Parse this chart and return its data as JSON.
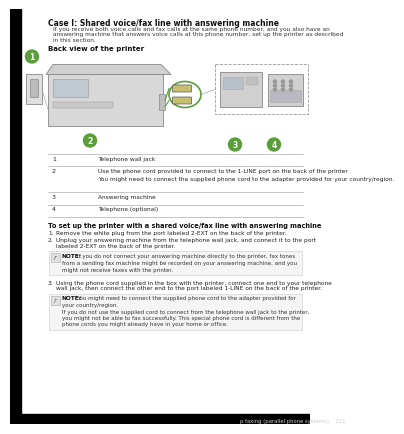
{
  "bg_color": "#ffffff",
  "title": "Case I: Shared voice/fax line with answering machine",
  "intro_lines": [
    "If you receive both voice calls and fax calls at the same phone number, and you also have an",
    "answering machine that answers voice calls at this phone number, set up the printer as described",
    "in this section."
  ],
  "section_title": "Back view of the printer",
  "table_rows": [
    [
      "1",
      "Telephone wall jack"
    ],
    [
      "2",
      "Use the phone cord provided to connect to the 1-LINE port on the back of the printer",
      "You might need to connect the supplied phone cord to the adapter provided for your country/region."
    ],
    [
      "3",
      "Answering machine"
    ],
    [
      "4",
      "Telephone (optional)"
    ]
  ],
  "setup_title": "To set up the printer with a shared voice/fax line with answering machine",
  "step1": "Remove the white plug from the port labeled 2-EXT on the back of the printer.",
  "step2a": "Unplug your answering machine from the telephone wall jack, and connect it to the port",
  "step2b": "labeled 2-EXT on the back of the printer.",
  "note1_label": "NOTE:",
  "note1_text": "  If you do not connect your answering machine directly to the printer, fax tones",
  "note1_line2": "from a sending fax machine might be recorded on your answering machine, and you",
  "note1_line3": "might not receive faxes with the printer.",
  "step3a": "Using the phone cord supplied in the box with the printer, connect one end to your telephone",
  "step3b": "wall jack, then connect the other end to the port labeled 1-LINE on the back of the printer.",
  "note2_label": "NOTE:",
  "note2_text": "   You might need to connect the supplied phone cord to the adapter provided for",
  "note2_line2": "your country/region.",
  "note2_line3": "If you do not use the supplied cord to connect from the telephone wall jack to the printer,",
  "note2_line4": "you might not be able to fax successfully. This special phone cord is different from the",
  "note2_line5": "phone cords you might already have in your home or office.",
  "footer_text": "p faxing (parallel phone systems)    211",
  "green": "#5a9e3a",
  "darkgray": "#555555",
  "lightgray": "#cccccc",
  "linegray": "#aaaaaa",
  "tableline": "#bbbbbb"
}
